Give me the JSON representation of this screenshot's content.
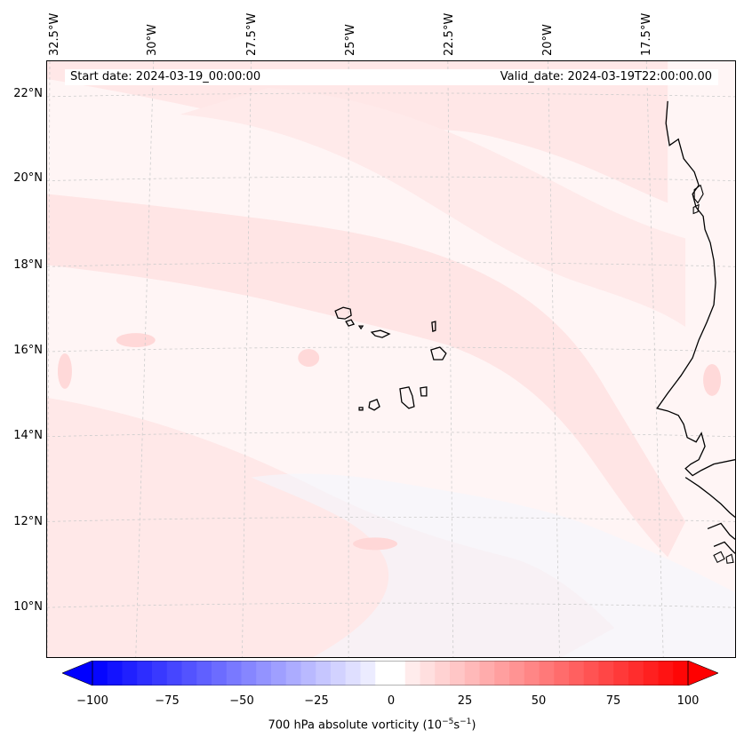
{
  "header": {
    "start_date": "Start date: 2024-03-19_00:00:00",
    "valid_date": "Valid_date: 2024-03-19T22:00:00.00"
  },
  "longitude_labels": [
    "32.5°W",
    "30°W",
    "27.5°W",
    "25°W",
    "22.5°W",
    "20°W",
    "17.5°W"
  ],
  "latitude_labels": [
    "22°N",
    "20°N",
    "18°N",
    "16°N",
    "14°N",
    "12°N",
    "10°N"
  ],
  "colorbar": {
    "ticks": [
      "−100",
      "−75",
      "−50",
      "−25",
      "0",
      "25",
      "50",
      "75",
      "100"
    ],
    "label_prefix": "700 hPa absolute vorticity (10",
    "label_sup1": "−5",
    "label_mid": "s",
    "label_sup2": "−1",
    "label_suffix": ")",
    "min": -100,
    "max": 100,
    "extend": "both",
    "colors": {
      "min": "#0000ff",
      "zero": "#ffffff",
      "max": "#ff0000"
    }
  },
  "map": {
    "field": "700 hPa absolute vorticity",
    "region": "Cape Verde / West African coast",
    "colors": {
      "background": "#fff5f5",
      "band": "#ffe6e6",
      "band_strong": "#ffd9d9",
      "negative": "#f3f5fd",
      "coast": "#000000",
      "grid": "#cccccc"
    }
  }
}
